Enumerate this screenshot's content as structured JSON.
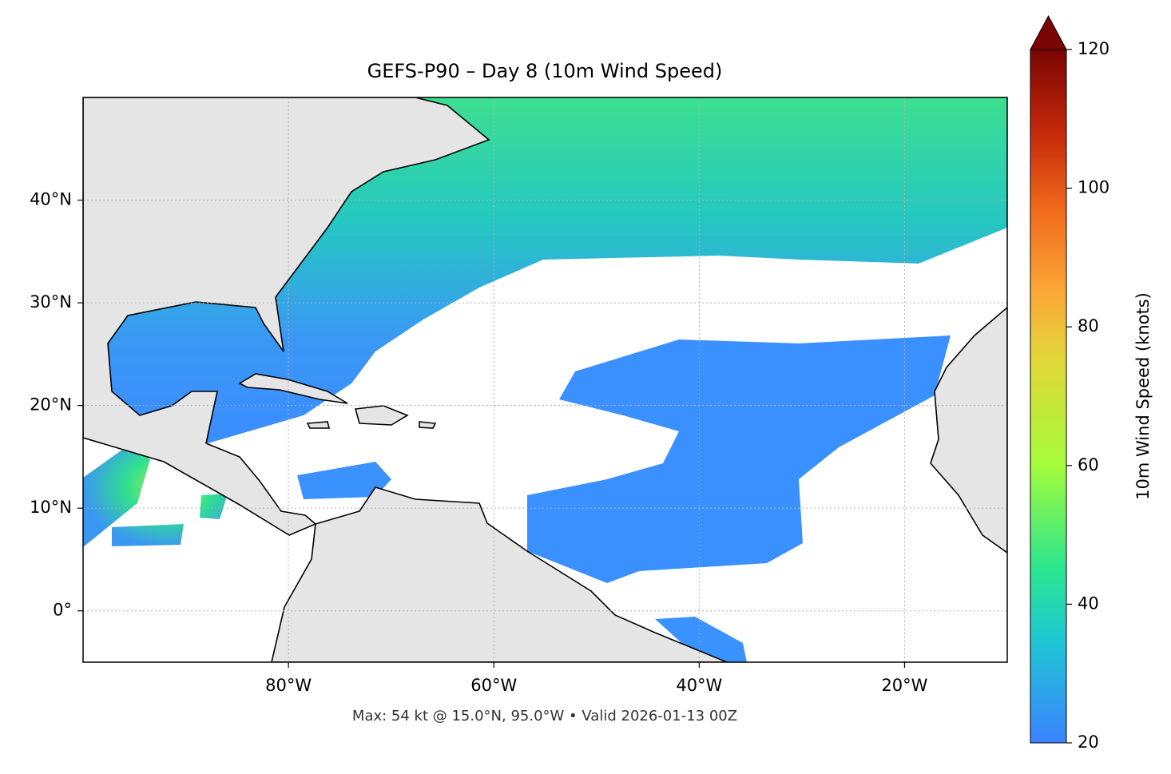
{
  "chart_data": {
    "type": "map",
    "title": "GEFS-P90 – Day 8 (10m Wind Speed)",
    "annotation": "Max: 54 kt @ 15.0°N, 95.0°W • Valid 2026-01-13 00Z",
    "xlim": [
      -100,
      -10
    ],
    "ylim": [
      -5,
      50
    ],
    "xticks": [
      {
        "value": -80,
        "label": "80°W"
      },
      {
        "value": -60,
        "label": "60°W"
      },
      {
        "value": -40,
        "label": "40°W"
      },
      {
        "value": -20,
        "label": "20°W"
      }
    ],
    "yticks": [
      {
        "value": 0,
        "label": "0°"
      },
      {
        "value": 10,
        "label": "10°N"
      },
      {
        "value": 20,
        "label": "20°N"
      },
      {
        "value": 30,
        "label": "30°N"
      },
      {
        "value": 40,
        "label": "40°N"
      }
    ],
    "grid": true,
    "colorbar": {
      "label": "10m Wind Speed (knots)",
      "lim": [
        20,
        120
      ],
      "ticks": [
        20,
        40,
        60,
        80,
        100,
        120
      ]
    }
  }
}
